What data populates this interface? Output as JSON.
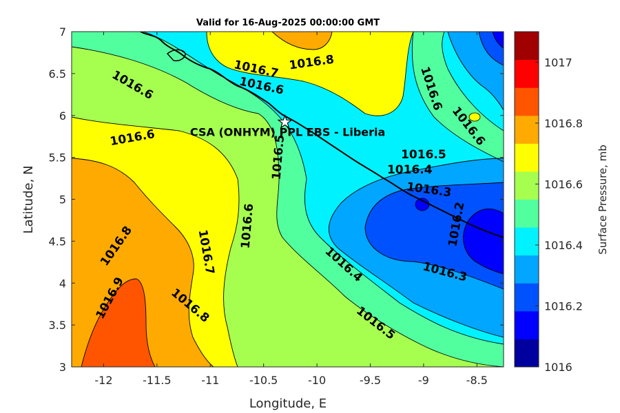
{
  "title": "Valid for 16-Aug-2025 00:00:00 GMT",
  "x_axis": {
    "label": "Longitude, E",
    "min": -12.3,
    "max": -8.25,
    "ticks": [
      -12,
      -11.5,
      -11,
      -10.5,
      -10,
      -9.5,
      -9,
      -8.5
    ]
  },
  "y_axis": {
    "label": "Latitude, N",
    "min": 3,
    "max": 7,
    "ticks": [
      3,
      3.5,
      4,
      4.5,
      5,
      5.5,
      6,
      6.5,
      7
    ]
  },
  "colorbar": {
    "label": "Surface Pressure, mb",
    "min": 1016,
    "max": 1017.1,
    "ticks": [
      1016,
      1016.2,
      1016.4,
      1016.6,
      1016.8,
      1017
    ],
    "colors": [
      "#00009e",
      "#0000ff",
      "#0052ff",
      "#00a6ff",
      "#00f2ff",
      "#52ff9f",
      "#a6ff4f",
      "#ffff00",
      "#ffaa00",
      "#ff5500",
      "#ff0000",
      "#a00000"
    ]
  },
  "site": {
    "name": "CSA (ONHYM) PPL EBS  - Liberia",
    "lon": -10.3,
    "lat": 5.92,
    "marker": "star"
  },
  "contour_labels": [
    {
      "text": "1016.7",
      "lon": -10.57,
      "lat": 6.55,
      "rot": 12
    },
    {
      "text": "1016.8",
      "lon": -10.05,
      "lat": 6.63,
      "rot": -8
    },
    {
      "text": "1016.6",
      "lon": -10.52,
      "lat": 6.35,
      "rot": 12
    },
    {
      "text": "1016.6",
      "lon": -11.73,
      "lat": 6.36,
      "rot": 30
    },
    {
      "text": "1016.6",
      "lon": -8.93,
      "lat": 6.32,
      "rot": 72
    },
    {
      "text": "1016.6",
      "lon": -8.58,
      "lat": 5.87,
      "rot": 52
    },
    {
      "text": "1016.6",
      "lon": -11.73,
      "lat": 5.73,
      "rot": -10
    },
    {
      "text": "1016.5",
      "lon": -10.36,
      "lat": 5.5,
      "rot": -85
    },
    {
      "text": "1016.5",
      "lon": -9.0,
      "lat": 5.53,
      "rot": 0
    },
    {
      "text": "1016.4",
      "lon": -9.13,
      "lat": 5.35,
      "rot": 0
    },
    {
      "text": "1016.3",
      "lon": -8.95,
      "lat": 5.11,
      "rot": 8
    },
    {
      "text": "1016.2",
      "lon": -8.69,
      "lat": 4.7,
      "rot": -80
    },
    {
      "text": "1016.6",
      "lon": -10.65,
      "lat": 4.68,
      "rot": -85
    },
    {
      "text": "1016.7",
      "lon": -11.04,
      "lat": 4.37,
      "rot": 80
    },
    {
      "text": "1016.8",
      "lon": -11.88,
      "lat": 4.44,
      "rot": -55
    },
    {
      "text": "1016.8",
      "lon": -11.19,
      "lat": 3.73,
      "rot": 40
    },
    {
      "text": "1016.9",
      "lon": -11.94,
      "lat": 3.82,
      "rot": -62
    },
    {
      "text": "1016.4",
      "lon": -9.75,
      "lat": 4.22,
      "rot": 42
    },
    {
      "text": "1016.3",
      "lon": -8.8,
      "lat": 4.13,
      "rot": 15
    },
    {
      "text": "1016.5",
      "lon": -9.45,
      "lat": 3.52,
      "rot": 38
    }
  ]
}
